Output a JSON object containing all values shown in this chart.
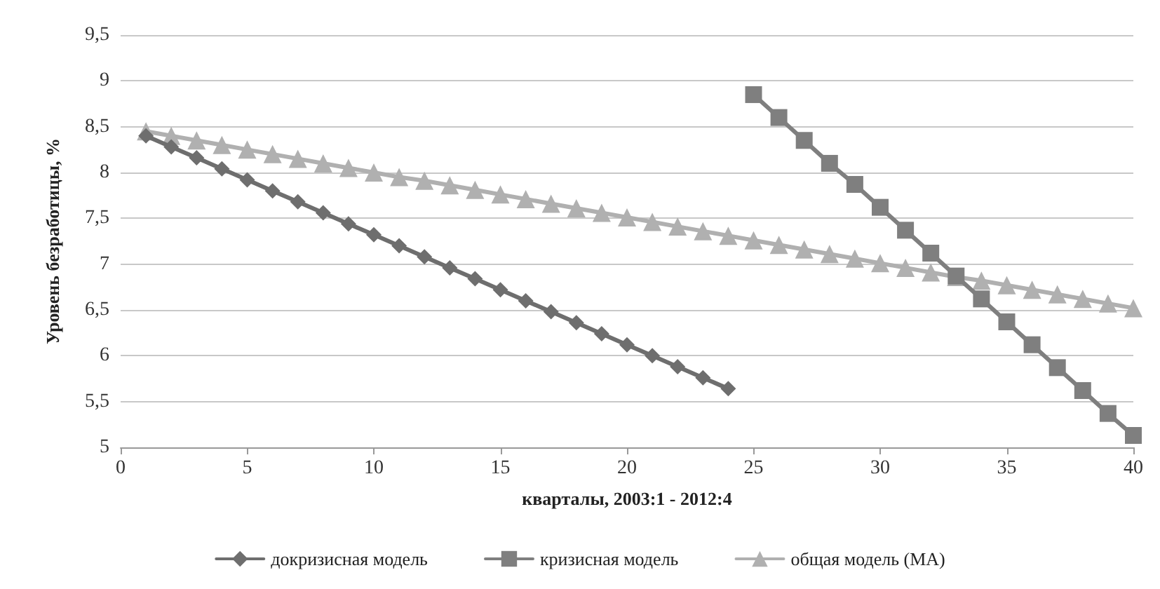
{
  "chart_data": {
    "type": "line",
    "xlabel": "кварталы, 2003:1 - 2012:4",
    "ylabel": "Уровень безработицы, %",
    "xlim": [
      0,
      40
    ],
    "xticks": [
      0,
      5,
      10,
      15,
      20,
      25,
      30,
      35,
      40
    ],
    "ylim": [
      5,
      9.5
    ],
    "yticks": [
      5,
      {
        "value": 5.5,
        "label": "5,5"
      },
      6,
      {
        "value": 6.5,
        "label": "6,5"
      },
      7,
      {
        "value": 7.5,
        "label": "7,5"
      },
      8,
      {
        "value": 8.5,
        "label": "8,5"
      },
      9,
      {
        "value": 9.5,
        "label": "9,5"
      }
    ],
    "grid": "y",
    "legend": "bottom",
    "series": [
      {
        "name": "докризисная модель",
        "color": "#6e6e6e",
        "marker": "diamond",
        "x": [
          1,
          2,
          3,
          4,
          5,
          6,
          7,
          8,
          9,
          10,
          11,
          12,
          13,
          14,
          15,
          16,
          17,
          18,
          19,
          20,
          21,
          22,
          23,
          24
        ],
        "values": [
          8.4,
          8.28,
          8.16,
          8.04,
          7.92,
          7.8,
          7.68,
          7.56,
          7.44,
          7.32,
          7.2,
          7.08,
          6.96,
          6.84,
          6.72,
          6.6,
          6.48,
          6.36,
          6.24,
          6.12,
          6.0,
          5.88,
          5.76,
          5.64
        ]
      },
      {
        "name": "кризисная модель",
        "color": "#7f7f7f",
        "marker": "square",
        "x": [
          25,
          26,
          27,
          28,
          29,
          30,
          31,
          32,
          33,
          34,
          35,
          36,
          37,
          38,
          39,
          40
        ],
        "values": [
          8.85,
          8.6,
          8.35,
          8.1,
          7.87,
          7.62,
          7.37,
          7.12,
          6.87,
          6.62,
          6.37,
          6.12,
          5.87,
          5.62,
          5.37,
          5.13
        ]
      },
      {
        "name": "общая модель (MA)",
        "color": "#b0b0b0",
        "marker": "triangle",
        "x": [
          1,
          2,
          3,
          4,
          5,
          6,
          7,
          8,
          9,
          10,
          11,
          12,
          13,
          14,
          15,
          16,
          17,
          18,
          19,
          20,
          21,
          22,
          23,
          24,
          25,
          26,
          27,
          28,
          29,
          30,
          31,
          32,
          33,
          34,
          35,
          36,
          37,
          38,
          39,
          40
        ],
        "values": [
          8.45,
          8.4,
          8.35,
          8.3,
          8.25,
          8.2,
          8.15,
          8.1,
          8.05,
          8.0,
          7.95,
          7.91,
          7.86,
          7.81,
          7.76,
          7.71,
          7.66,
          7.61,
          7.56,
          7.51,
          7.46,
          7.41,
          7.36,
          7.31,
          7.26,
          7.21,
          7.16,
          7.11,
          7.06,
          7.01,
          6.96,
          6.91,
          6.86,
          6.82,
          6.77,
          6.72,
          6.67,
          6.62,
          6.57,
          6.52
        ]
      }
    ]
  }
}
